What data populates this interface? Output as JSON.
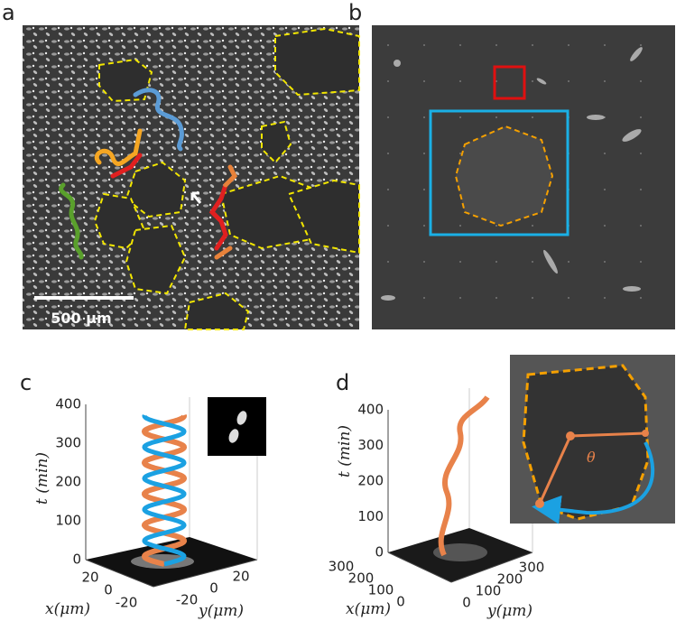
{
  "panels": [
    {
      "label": "a",
      "scale_bar": "500 μm"
    },
    {
      "label": "b"
    },
    {
      "label": "c",
      "t_label": "t (min)",
      "x_label": "x(μm)",
      "y_label": "y(μm)",
      "t_ticks": [
        "0",
        "100",
        "200",
        "300",
        "400"
      ],
      "x_ticks": [
        "20",
        "0",
        "-20"
      ],
      "y_ticks": [
        "-20",
        "0",
        "20"
      ]
    },
    {
      "label": "d",
      "t_label": "t (min)",
      "x_label": "x(μm)",
      "y_label": "y(μm)",
      "t_ticks": [
        "0",
        "100",
        "200",
        "300",
        "400"
      ],
      "x_ticks": [
        "300",
        "200",
        "100",
        "0"
      ],
      "y_ticks": [
        "0",
        "100",
        "200",
        "300"
      ],
      "angle_label": "θ"
    }
  ]
}
